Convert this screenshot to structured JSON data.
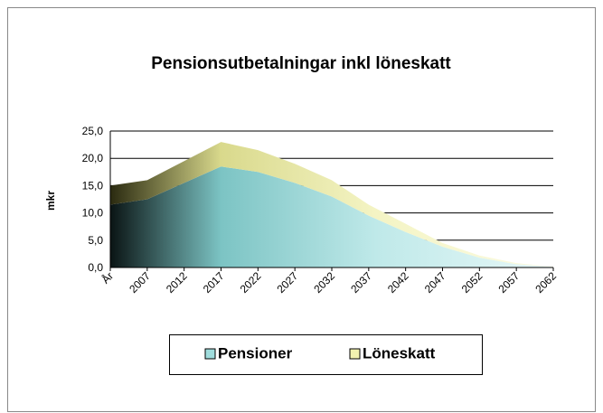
{
  "chart_data": {
    "type": "area",
    "stacked": true,
    "title": "Pensionsutbetalningar inkl löneskatt",
    "ylabel": "mkr",
    "categories": [
      "År",
      "2007",
      "2012",
      "2017",
      "2022",
      "2027",
      "2032",
      "2037",
      "2042",
      "2047",
      "2052",
      "2057",
      "2062"
    ],
    "series": [
      {
        "name": "Pensioner",
        "color": "#9fdcdc",
        "values": [
          11.5,
          12.5,
          15.5,
          18.5,
          17.5,
          15.5,
          13,
          9.5,
          6.5,
          3.8,
          1.8,
          0.6,
          0.1
        ]
      },
      {
        "name": "Löneskatt",
        "color": "#f2f2b0",
        "values": [
          3.5,
          3.5,
          4,
          4.5,
          4,
          3.5,
          3,
          2,
          1.5,
          0.7,
          0.4,
          0.2,
          0.05
        ]
      }
    ],
    "ylim": [
      0,
      25
    ],
    "yticks": [
      {
        "value": 0,
        "label": "0,0"
      },
      {
        "value": 5,
        "label": "5,0"
      },
      {
        "value": 10,
        "label": "10,0"
      },
      {
        "value": 15,
        "label": "15,0"
      },
      {
        "value": 20,
        "label": "20,0"
      },
      {
        "value": 25,
        "label": "25,0"
      }
    ],
    "grid": true,
    "legend": "bottom"
  }
}
